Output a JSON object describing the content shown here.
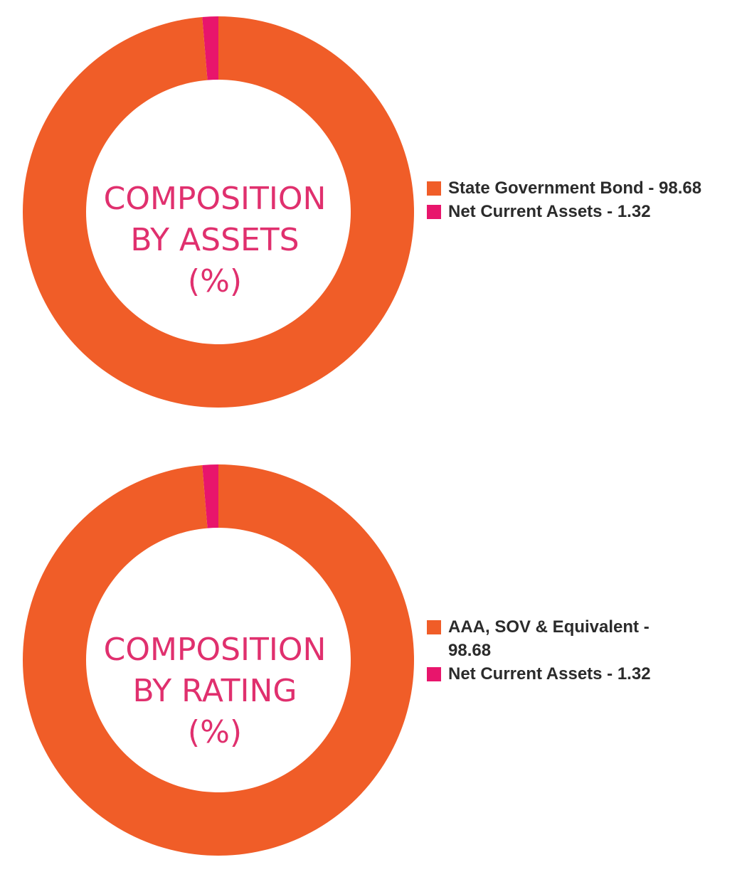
{
  "colors": {
    "orange": "#f05d28",
    "pink": "#e8156c",
    "title": "#e0306e",
    "text": "#2b2b2b"
  },
  "chart_data": [
    {
      "type": "pie",
      "variant": "donut",
      "center_title": [
        "COMPOSITION",
        "BY ASSETS",
        "(%)"
      ],
      "slices": [
        {
          "label": "State Government Bond - 98.68",
          "value": 98.68,
          "color": "#f05d28"
        },
        {
          "label": "Net Current Assets - 1.32",
          "value": 1.32,
          "color": "#e8156c"
        }
      ],
      "legend_position": "right"
    },
    {
      "type": "pie",
      "variant": "donut",
      "center_title": [
        "COMPOSITION",
        "BY RATING",
        "(%)"
      ],
      "slices": [
        {
          "label": "AAA, SOV & Equivalent - 98.68",
          "value": 98.68,
          "color": "#f05d28"
        },
        {
          "label": "Net Current Assets - 1.32",
          "value": 1.32,
          "color": "#e8156c"
        }
      ],
      "legend_position": "right"
    }
  ]
}
